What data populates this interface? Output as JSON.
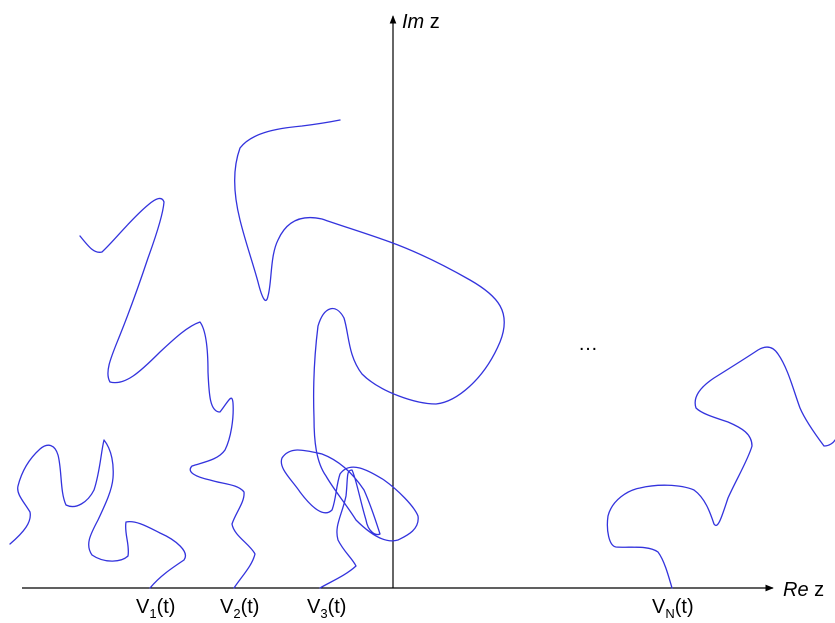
{
  "axes": {
    "imaginary_label_italic": "Im",
    "imaginary_label_var": " z",
    "real_label_italic": "Re",
    "real_label_var": " z"
  },
  "ellipsis": "…",
  "traces": [
    {
      "base": "V",
      "sub": "1",
      "arg": "(t)"
    },
    {
      "base": "V",
      "sub": "2",
      "arg": "(t)"
    },
    {
      "base": "V",
      "sub": "3",
      "arg": "(t)"
    },
    {
      "base": "V",
      "sub": "N",
      "arg": "(t)"
    }
  ],
  "colors": {
    "curve": "#3333dd",
    "axis": "#000000"
  }
}
